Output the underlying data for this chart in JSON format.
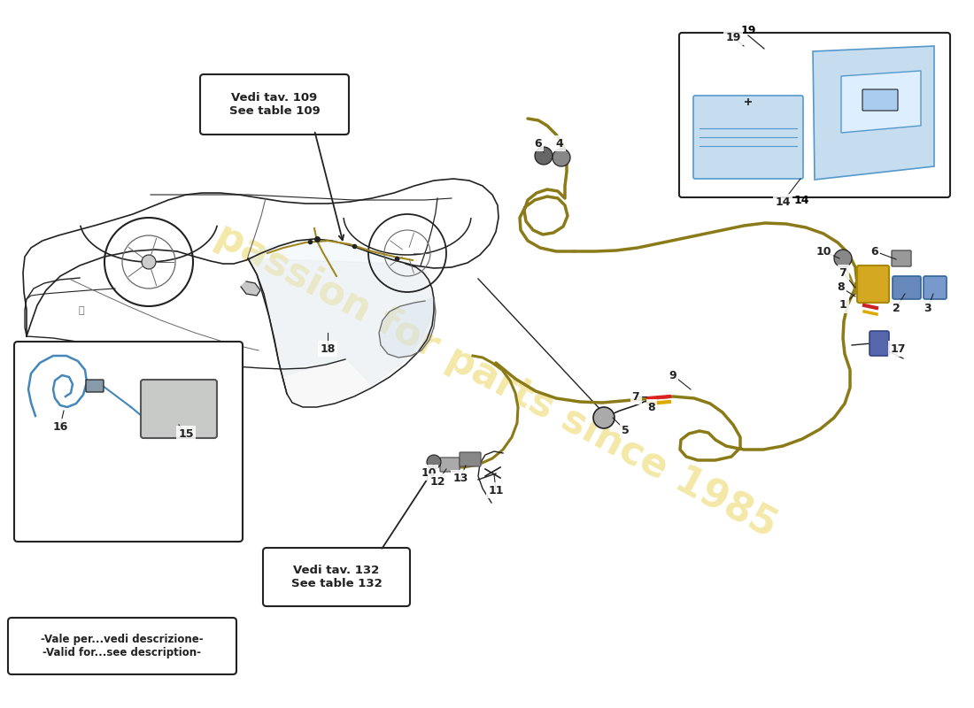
{
  "bg_color": "#ffffff",
  "watermark_text": "passion for parts since 1985",
  "watermark_color": "#e8cc40",
  "watermark_alpha": 0.45,
  "callout_109_text": "Vedi tav. 109\nSee table 109",
  "callout_132_text": "Vedi tav. 132\nSee table 132",
  "bottom_note": "-Vale per...vedi descrizione-\n-Valid for...see description-",
  "cable_color": "#8b7a18",
  "cable_color2": "#a08820",
  "connector_yellow": "#c8a020",
  "connector_red": "#cc2222",
  "connector_blue": "#5577bb",
  "connector_grey": "#888888",
  "outline_color": "#222222",
  "light_outline": "#666666"
}
